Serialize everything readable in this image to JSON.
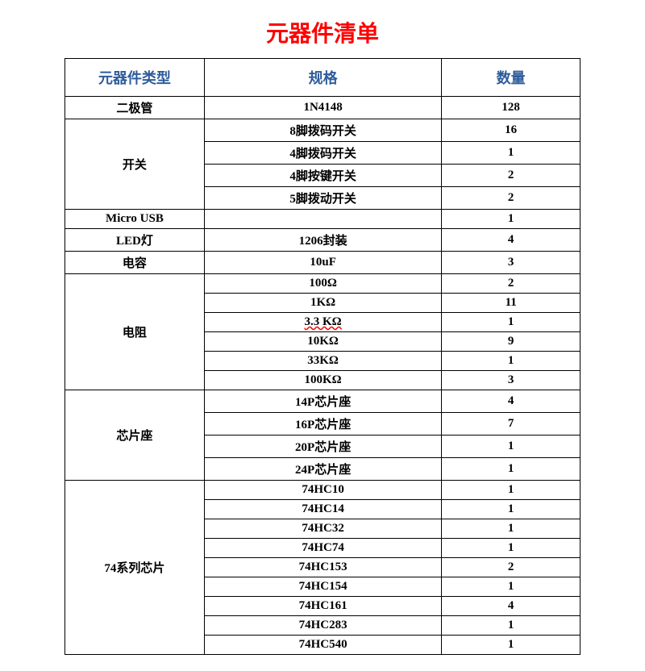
{
  "title": "元器件清单",
  "title_color": "#ff0000",
  "header_color": "#2e5c9a",
  "columns": [
    "元器件类型",
    "规格",
    "数量"
  ],
  "rows": [
    {
      "type": "二极管",
      "spec": "1N4148",
      "qty": "128",
      "rowspan": 1
    },
    {
      "type": "开关",
      "spec": "8脚拨码开关",
      "qty": "16",
      "rowspan": 4
    },
    {
      "spec": "4脚拨码开关",
      "qty": "1"
    },
    {
      "spec": "4脚按键开关",
      "qty": "2"
    },
    {
      "spec": "5脚拨动开关",
      "qty": "2"
    },
    {
      "type": "Micro USB",
      "spec": "",
      "qty": "1",
      "rowspan": 1
    },
    {
      "type": "LED灯",
      "spec": "1206封装",
      "qty": "4",
      "rowspan": 1
    },
    {
      "type": "电容",
      "spec": "10uF",
      "qty": "3",
      "rowspan": 1
    },
    {
      "type": "电阻",
      "spec": "100Ω",
      "qty": "2",
      "rowspan": 6
    },
    {
      "spec": "1KΩ",
      "qty": "11"
    },
    {
      "spec": "3.3 KΩ",
      "qty": "1",
      "spec_underline": true
    },
    {
      "spec": "10KΩ",
      "qty": "9"
    },
    {
      "spec": "33KΩ",
      "qty": "1"
    },
    {
      "spec": "100KΩ",
      "qty": "3"
    },
    {
      "type": "芯片座",
      "spec": "14P芯片座",
      "qty": "4",
      "rowspan": 4
    },
    {
      "spec": "16P芯片座",
      "qty": "7"
    },
    {
      "spec": "20P芯片座",
      "qty": "1"
    },
    {
      "spec": "24P芯片座",
      "qty": "1"
    },
    {
      "type": "74系列芯片",
      "spec": "74HC10",
      "qty": "1",
      "rowspan": 9
    },
    {
      "spec": "74HC14",
      "qty": "1"
    },
    {
      "spec": "74HC32",
      "qty": "1"
    },
    {
      "spec": "74HC74",
      "qty": "1"
    },
    {
      "spec": "74HC153",
      "qty": "2"
    },
    {
      "spec": "74HC154",
      "qty": "1"
    },
    {
      "spec": "74HC161",
      "qty": "4"
    },
    {
      "spec": "74HC283",
      "qty": "1"
    },
    {
      "spec": "74HC540",
      "qty": "1"
    }
  ]
}
